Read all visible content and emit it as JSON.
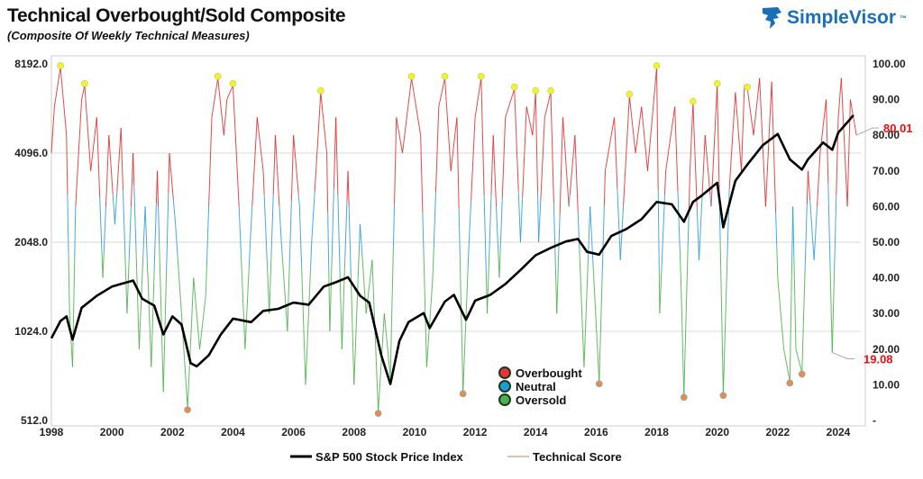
{
  "header": {
    "title": "Technical Overbought/Sold Composite",
    "subtitle": "(Composite Of Weekly Technical Measures)",
    "logo_text": "SimpleVisor",
    "logo_tm": "™"
  },
  "chart_data": {
    "type": "line",
    "title": "Technical Overbought/Sold Composite",
    "subtitle": "(Composite Of Weekly Technical Measures)",
    "x_ticks": [
      "1998",
      "2000",
      "2002",
      "2004",
      "2006",
      "2008",
      "2010",
      "2012",
      "2014",
      "2016",
      "2018",
      "2020",
      "2022",
      "2024"
    ],
    "left_axis": {
      "scale": "log2",
      "range": [
        512,
        8192
      ],
      "ticks": [
        "512.0",
        "1024.0",
        "2048.0",
        "4096.0",
        "8192.0"
      ]
    },
    "right_axis": {
      "range": [
        0,
        100
      ],
      "ticks": [
        "-",
        "10.00",
        "20.00",
        "30.00",
        "40.00",
        "50.00",
        "60.00",
        "70.00",
        "80.00",
        "90.00",
        "100.00"
      ]
    },
    "grid": "horizontal",
    "legend": {
      "placement": "bottom",
      "entries": [
        "S&P 500 Stock Price Index",
        "Technical Score"
      ]
    },
    "zone_legend": {
      "placement": "bottom-center",
      "entries": [
        {
          "label": "Overbought",
          "color": "#e8333a"
        },
        {
          "label": "Neutral",
          "color": "#1f9ad6"
        },
        {
          "label": "Oversold",
          "color": "#4caf50"
        }
      ]
    },
    "annotations": [
      {
        "label": "80.01",
        "value": 80.01
      },
      {
        "label": "19.08",
        "value": 19.08
      }
    ],
    "colors": {
      "sp500": "#000000",
      "overbought": "#e02a2a",
      "neutral": "#2a9ad8",
      "oversold": "#4aae4a",
      "peak_marker": "#eef23a",
      "trough_marker": "#f08a3c",
      "legend_line": "#b08a60"
    },
    "series": [
      {
        "name": "S&P 500 Stock Price Index",
        "axis": "left",
        "points": [
          [
            1998.0,
            970
          ],
          [
            1998.3,
            1110
          ],
          [
            1998.5,
            1150
          ],
          [
            1998.7,
            960
          ],
          [
            1999.0,
            1230
          ],
          [
            1999.5,
            1350
          ],
          [
            2000.0,
            1450
          ],
          [
            2000.3,
            1480
          ],
          [
            2000.7,
            1520
          ],
          [
            2001.0,
            1320
          ],
          [
            2001.4,
            1250
          ],
          [
            2001.7,
            1000
          ],
          [
            2002.0,
            1150
          ],
          [
            2002.3,
            1080
          ],
          [
            2002.6,
            800
          ],
          [
            2002.8,
            780
          ],
          [
            2003.2,
            850
          ],
          [
            2003.6,
            1000
          ],
          [
            2004.0,
            1130
          ],
          [
            2004.6,
            1100
          ],
          [
            2005.0,
            1200
          ],
          [
            2005.5,
            1220
          ],
          [
            2006.0,
            1280
          ],
          [
            2006.5,
            1260
          ],
          [
            2007.0,
            1450
          ],
          [
            2007.4,
            1500
          ],
          [
            2007.8,
            1560
          ],
          [
            2008.2,
            1350
          ],
          [
            2008.5,
            1280
          ],
          [
            2008.9,
            850
          ],
          [
            2009.2,
            680
          ],
          [
            2009.5,
            950
          ],
          [
            2009.8,
            1100
          ],
          [
            2010.3,
            1180
          ],
          [
            2010.5,
            1050
          ],
          [
            2011.0,
            1290
          ],
          [
            2011.3,
            1360
          ],
          [
            2011.7,
            1120
          ],
          [
            2012.0,
            1300
          ],
          [
            2012.5,
            1360
          ],
          [
            2013.0,
            1480
          ],
          [
            2013.5,
            1650
          ],
          [
            2014.0,
            1850
          ],
          [
            2014.5,
            1960
          ],
          [
            2015.0,
            2060
          ],
          [
            2015.4,
            2100
          ],
          [
            2015.7,
            1900
          ],
          [
            2016.1,
            1860
          ],
          [
            2016.5,
            2150
          ],
          [
            2017.0,
            2270
          ],
          [
            2017.5,
            2450
          ],
          [
            2018.0,
            2800
          ],
          [
            2018.5,
            2750
          ],
          [
            2018.9,
            2400
          ],
          [
            2019.2,
            2800
          ],
          [
            2019.5,
            2950
          ],
          [
            2020.0,
            3250
          ],
          [
            2020.2,
            2300
          ],
          [
            2020.6,
            3300
          ],
          [
            2021.0,
            3750
          ],
          [
            2021.5,
            4350
          ],
          [
            2022.0,
            4750
          ],
          [
            2022.4,
            3900
          ],
          [
            2022.8,
            3600
          ],
          [
            2023.0,
            3900
          ],
          [
            2023.5,
            4450
          ],
          [
            2023.8,
            4200
          ],
          [
            2024.0,
            4800
          ],
          [
            2024.3,
            5200
          ],
          [
            2024.5,
            5500
          ]
        ]
      },
      {
        "name": "Technical Score",
        "axis": "right",
        "points": [
          [
            1998.0,
            75
          ],
          [
            1998.1,
            88
          ],
          [
            1998.3,
            99
          ],
          [
            1998.5,
            80
          ],
          [
            1998.6,
            30
          ],
          [
            1998.7,
            15
          ],
          [
            1998.8,
            60
          ],
          [
            1999.0,
            90
          ],
          [
            1999.1,
            94
          ],
          [
            1999.3,
            70
          ],
          [
            1999.5,
            85
          ],
          [
            1999.7,
            40
          ],
          [
            1999.9,
            80
          ],
          [
            2000.1,
            55
          ],
          [
            2000.3,
            82
          ],
          [
            2000.5,
            30
          ],
          [
            2000.7,
            75
          ],
          [
            2000.9,
            20
          ],
          [
            2001.1,
            60
          ],
          [
            2001.3,
            15
          ],
          [
            2001.5,
            70
          ],
          [
            2001.7,
            8
          ],
          [
            2001.9,
            75
          ],
          [
            2002.1,
            55
          ],
          [
            2002.3,
            30
          ],
          [
            2002.5,
            3.5
          ],
          [
            2002.7,
            40
          ],
          [
            2002.9,
            20
          ],
          [
            2003.1,
            35
          ],
          [
            2003.3,
            85
          ],
          [
            2003.5,
            96
          ],
          [
            2003.7,
            80
          ],
          [
            2003.8,
            90
          ],
          [
            2004.0,
            94
          ],
          [
            2004.2,
            60
          ],
          [
            2004.4,
            20
          ],
          [
            2004.6,
            55
          ],
          [
            2004.8,
            85
          ],
          [
            2005.0,
            70
          ],
          [
            2005.2,
            30
          ],
          [
            2005.4,
            80
          ],
          [
            2005.6,
            50
          ],
          [
            2005.8,
            25
          ],
          [
            2006.0,
            80
          ],
          [
            2006.2,
            60
          ],
          [
            2006.4,
            10
          ],
          [
            2006.6,
            50
          ],
          [
            2006.9,
            92
          ],
          [
            2007.1,
            75
          ],
          [
            2007.2,
            25
          ],
          [
            2007.4,
            85
          ],
          [
            2007.6,
            20
          ],
          [
            2007.8,
            70
          ],
          [
            2008.0,
            10
          ],
          [
            2008.2,
            55
          ],
          [
            2008.4,
            30
          ],
          [
            2008.6,
            45
          ],
          [
            2008.8,
            2.5
          ],
          [
            2009.0,
            30
          ],
          [
            2009.2,
            12
          ],
          [
            2009.4,
            85
          ],
          [
            2009.6,
            75
          ],
          [
            2009.9,
            96
          ],
          [
            2010.2,
            80
          ],
          [
            2010.4,
            15
          ],
          [
            2010.6,
            40
          ],
          [
            2010.8,
            88
          ],
          [
            2011.0,
            96
          ],
          [
            2011.2,
            70
          ],
          [
            2011.4,
            85
          ],
          [
            2011.6,
            8
          ],
          [
            2011.8,
            50
          ],
          [
            2012.0,
            85
          ],
          [
            2012.2,
            96
          ],
          [
            2012.4,
            30
          ],
          [
            2012.6,
            80
          ],
          [
            2012.8,
            40
          ],
          [
            2013.0,
            85
          ],
          [
            2013.3,
            93
          ],
          [
            2013.5,
            50
          ],
          [
            2013.7,
            88
          ],
          [
            2013.9,
            80
          ],
          [
            2014.0,
            92
          ],
          [
            2014.1,
            50
          ],
          [
            2014.3,
            85
          ],
          [
            2014.5,
            92
          ],
          [
            2014.7,
            30
          ],
          [
            2014.9,
            85
          ],
          [
            2015.1,
            60
          ],
          [
            2015.3,
            80
          ],
          [
            2015.6,
            15
          ],
          [
            2015.8,
            60
          ],
          [
            2016.1,
            10.8
          ],
          [
            2016.3,
            70
          ],
          [
            2016.6,
            85
          ],
          [
            2016.8,
            45
          ],
          [
            2017.1,
            91
          ],
          [
            2017.3,
            75
          ],
          [
            2017.5,
            88
          ],
          [
            2017.7,
            70
          ],
          [
            2018.0,
            99
          ],
          [
            2018.1,
            30
          ],
          [
            2018.3,
            70
          ],
          [
            2018.6,
            88
          ],
          [
            2018.8,
            40
          ],
          [
            2018.9,
            7
          ],
          [
            2019.1,
            70
          ],
          [
            2019.2,
            89
          ],
          [
            2019.4,
            45
          ],
          [
            2019.6,
            80
          ],
          [
            2019.8,
            60
          ],
          [
            2020.0,
            94
          ],
          [
            2020.2,
            7.5
          ],
          [
            2020.4,
            65
          ],
          [
            2020.6,
            92
          ],
          [
            2020.8,
            70
          ],
          [
            2020.9,
            94
          ],
          [
            2021.0,
            93
          ],
          [
            2021.2,
            80
          ],
          [
            2021.4,
            96
          ],
          [
            2021.6,
            60
          ],
          [
            2021.8,
            95
          ],
          [
            2022.0,
            40
          ],
          [
            2022.2,
            20
          ],
          [
            2022.4,
            11
          ],
          [
            2022.5,
            60
          ],
          [
            2022.6,
            20
          ],
          [
            2022.8,
            13.5
          ],
          [
            2023.0,
            70
          ],
          [
            2023.2,
            45
          ],
          [
            2023.4,
            75
          ],
          [
            2023.6,
            90
          ],
          [
            2023.8,
            19.08
          ],
          [
            2024.0,
            85
          ],
          [
            2024.1,
            96
          ],
          [
            2024.3,
            60
          ],
          [
            2024.4,
            90
          ],
          [
            2024.6,
            80.01
          ]
        ]
      }
    ],
    "peaks": [
      [
        1998.3,
        99
      ],
      [
        1999.1,
        94
      ],
      [
        2003.5,
        96
      ],
      [
        2004.0,
        94
      ],
      [
        2006.9,
        92
      ],
      [
        2009.9,
        96
      ],
      [
        2011.0,
        96
      ],
      [
        2012.2,
        96
      ],
      [
        2013.3,
        93
      ],
      [
        2014.0,
        92
      ],
      [
        2014.5,
        92
      ],
      [
        2017.1,
        91
      ],
      [
        2018.0,
        99
      ],
      [
        2019.2,
        89
      ],
      [
        2020.0,
        94
      ],
      [
        2021.0,
        93
      ]
    ],
    "troughs": [
      [
        2002.5,
        3.5
      ],
      [
        2008.8,
        2.5
      ],
      [
        2011.6,
        8
      ],
      [
        2016.1,
        10.8
      ],
      [
        2018.9,
        7
      ],
      [
        2020.2,
        7.5
      ],
      [
        2022.4,
        11
      ],
      [
        2022.8,
        13.5
      ]
    ]
  }
}
